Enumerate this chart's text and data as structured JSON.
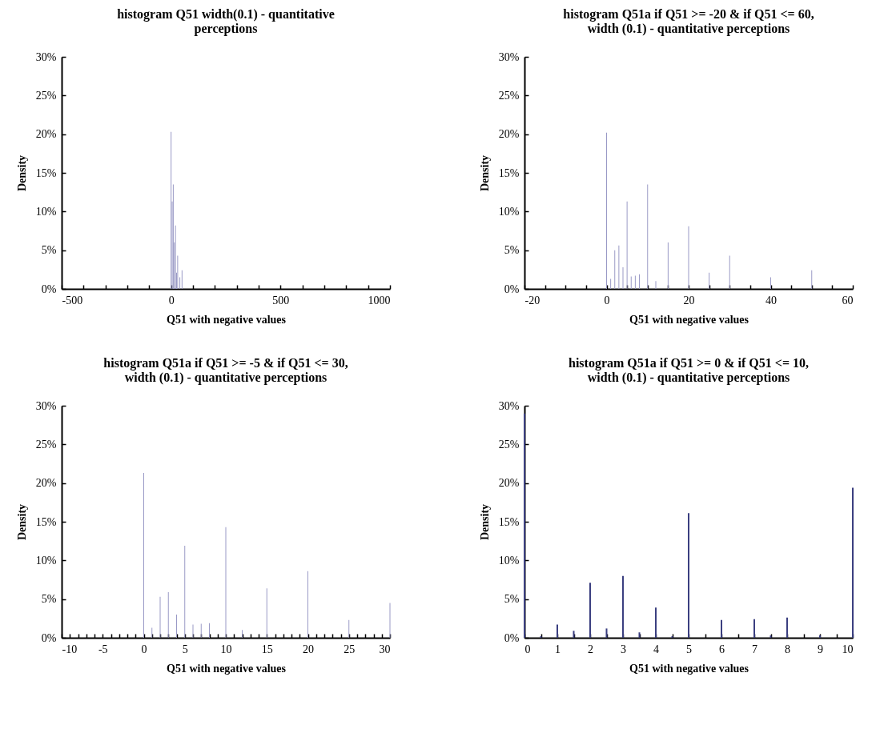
{
  "chart_data": [
    {
      "type": "bar",
      "title": "histogram Q51 width(0.1) - quantitative\nperceptions",
      "xlabel": "Q51 with negative values",
      "ylabel": "Density",
      "color": "#9a9ac6",
      "grid": false,
      "x": [
        0,
        5,
        10,
        15,
        20,
        25,
        30,
        40,
        50
      ],
      "values": [
        20.3,
        11.3,
        13.5,
        6.0,
        8.2,
        2.1,
        4.3,
        1.5,
        2.4
      ],
      "xlim": [
        -500,
        1000
      ],
      "xticks": [
        -500,
        {
          "value": -400,
          "label": null
        },
        {
          "value": -300,
          "label": null
        },
        {
          "value": -200,
          "label": null
        },
        {
          "value": -100,
          "label": null
        },
        0,
        {
          "value": 100,
          "label": null
        },
        {
          "value": 200,
          "label": null
        },
        {
          "value": 300,
          "label": null
        },
        {
          "value": 400,
          "label": null
        },
        500,
        {
          "value": 600,
          "label": null
        },
        {
          "value": 700,
          "label": null
        },
        {
          "value": 800,
          "label": null
        },
        {
          "value": 900,
          "label": null
        },
        1000
      ],
      "ylim": [
        0,
        30
      ],
      "yticks": [
        {
          "value": 0,
          "label": "0%"
        },
        {
          "value": 5,
          "label": "5%"
        },
        {
          "value": 10,
          "label": "10%"
        },
        {
          "value": 15,
          "label": "15%"
        },
        {
          "value": 20,
          "label": "20%"
        },
        {
          "value": 25,
          "label": "25%"
        },
        {
          "value": 30,
          "label": "30%"
        }
      ]
    },
    {
      "type": "bar",
      "title": "histogram Q51a if Q51 >= -20 & if Q51 <= 60,\nwidth (0.1) - quantitative perceptions",
      "xlabel": "Q51 with negative values",
      "ylabel": "Density",
      "color": "#9a9ac6",
      "grid": false,
      "x": [
        0,
        1,
        2,
        3,
        4,
        5,
        6,
        7,
        8,
        10,
        12,
        15,
        20,
        25,
        30,
        40,
        50
      ],
      "values": [
        20.2,
        1.3,
        5.0,
        5.6,
        2.8,
        11.3,
        1.6,
        1.7,
        1.9,
        13.5,
        1.0,
        6.0,
        8.1,
        2.1,
        4.3,
        1.5,
        2.4
      ],
      "xlim": [
        -20,
        60
      ],
      "xticks": [
        -20,
        {
          "value": -15,
          "label": null
        },
        {
          "value": -10,
          "label": null
        },
        {
          "value": -5,
          "label": null
        },
        0,
        {
          "value": 5,
          "label": null
        },
        {
          "value": 10,
          "label": null
        },
        {
          "value": 15,
          "label": null
        },
        20,
        {
          "value": 25,
          "label": null
        },
        {
          "value": 30,
          "label": null
        },
        {
          "value": 35,
          "label": null
        },
        40,
        {
          "value": 45,
          "label": null
        },
        {
          "value": 50,
          "label": null
        },
        {
          "value": 55,
          "label": null
        },
        60
      ],
      "ylim": [
        0,
        30
      ],
      "yticks": [
        {
          "value": 0,
          "label": "0%"
        },
        {
          "value": 5,
          "label": "5%"
        },
        {
          "value": 10,
          "label": "10%"
        },
        {
          "value": 15,
          "label": "15%"
        },
        {
          "value": 20,
          "label": "20%"
        },
        {
          "value": 25,
          "label": "25%"
        },
        {
          "value": 30,
          "label": "30%"
        }
      ]
    },
    {
      "type": "bar",
      "title": "histogram Q51a if Q51 >= -5 & if Q51 <= 30,\nwidth (0.1) - quantitative perceptions",
      "xlabel": "Q51 with negative values",
      "ylabel": "Density",
      "color": "#9a9ac6",
      "grid": false,
      "x": [
        0,
        1,
        2,
        3,
        4,
        5,
        6,
        7,
        8,
        10,
        12,
        15,
        20,
        25,
        30
      ],
      "values": [
        21.3,
        1.3,
        5.3,
        5.9,
        3.0,
        11.9,
        1.7,
        1.8,
        1.9,
        14.3,
        1.0,
        6.4,
        8.6,
        2.3,
        4.5
      ],
      "xlim": [
        -10,
        30
      ],
      "xticks": [
        -10,
        {
          "value": -9,
          "label": null
        },
        {
          "value": -8,
          "label": null
        },
        {
          "value": -7,
          "label": null
        },
        {
          "value": -6,
          "label": null
        },
        -5,
        {
          "value": -4,
          "label": null
        },
        {
          "value": -3,
          "label": null
        },
        {
          "value": -2,
          "label": null
        },
        {
          "value": -1,
          "label": null
        },
        0,
        {
          "value": 1,
          "label": null
        },
        {
          "value": 2,
          "label": null
        },
        {
          "value": 3,
          "label": null
        },
        {
          "value": 4,
          "label": null
        },
        5,
        {
          "value": 6,
          "label": null
        },
        {
          "value": 7,
          "label": null
        },
        {
          "value": 8,
          "label": null
        },
        {
          "value": 9,
          "label": null
        },
        10,
        {
          "value": 11,
          "label": null
        },
        {
          "value": 12,
          "label": null
        },
        {
          "value": 13,
          "label": null
        },
        {
          "value": 14,
          "label": null
        },
        15,
        {
          "value": 16,
          "label": null
        },
        {
          "value": 17,
          "label": null
        },
        {
          "value": 18,
          "label": null
        },
        {
          "value": 19,
          "label": null
        },
        20,
        {
          "value": 21,
          "label": null
        },
        {
          "value": 22,
          "label": null
        },
        {
          "value": 23,
          "label": null
        },
        {
          "value": 24,
          "label": null
        },
        25,
        {
          "value": 26,
          "label": null
        },
        {
          "value": 27,
          "label": null
        },
        {
          "value": 28,
          "label": null
        },
        {
          "value": 29,
          "label": null
        },
        30
      ],
      "ylim": [
        0,
        30
      ],
      "yticks": [
        {
          "value": 0,
          "label": "0%"
        },
        {
          "value": 5,
          "label": "5%"
        },
        {
          "value": 10,
          "label": "10%"
        },
        {
          "value": 15,
          "label": "15%"
        },
        {
          "value": 20,
          "label": "20%"
        },
        {
          "value": 25,
          "label": "25%"
        },
        {
          "value": 30,
          "label": "30%"
        }
      ]
    },
    {
      "type": "bar",
      "title": "histogram Q51a if Q51 >= 0 & if Q51 <= 10,\nwidth (0.1) - quantitative perceptions",
      "xlabel": "Q51 with negative values",
      "ylabel": "Density",
      "color": "#3b3f80",
      "grid": false,
      "x": [
        0,
        0.5,
        1,
        1.5,
        2,
        2.5,
        3,
        3.5,
        4,
        4.5,
        5,
        6,
        7,
        7.5,
        8,
        9,
        10
      ],
      "values": [
        29.0,
        0.2,
        1.7,
        0.9,
        7.1,
        1.2,
        8.0,
        0.7,
        3.9,
        0.2,
        16.1,
        2.3,
        2.4,
        0.3,
        2.6,
        0.3,
        19.4
      ],
      "xlim": [
        0,
        10
      ],
      "xticks": [
        0,
        {
          "value": 0.5,
          "label": null
        },
        1,
        {
          "value": 1.5,
          "label": null
        },
        2,
        {
          "value": 2.5,
          "label": null
        },
        3,
        {
          "value": 3.5,
          "label": null
        },
        4,
        {
          "value": 4.5,
          "label": null
        },
        5,
        {
          "value": 5.5,
          "label": null
        },
        6,
        {
          "value": 6.5,
          "label": null
        },
        7,
        {
          "value": 7.5,
          "label": null
        },
        8,
        {
          "value": 8.5,
          "label": null
        },
        9,
        {
          "value": 9.5,
          "label": null
        },
        10
      ],
      "ylim": [
        0,
        30
      ],
      "yticks": [
        {
          "value": 0,
          "label": "0%"
        },
        {
          "value": 5,
          "label": "5%"
        },
        {
          "value": 10,
          "label": "10%"
        },
        {
          "value": 15,
          "label": "15%"
        },
        {
          "value": 20,
          "label": "20%"
        },
        {
          "value": 25,
          "label": "25%"
        },
        {
          "value": 30,
          "label": "30%"
        }
      ]
    }
  ]
}
